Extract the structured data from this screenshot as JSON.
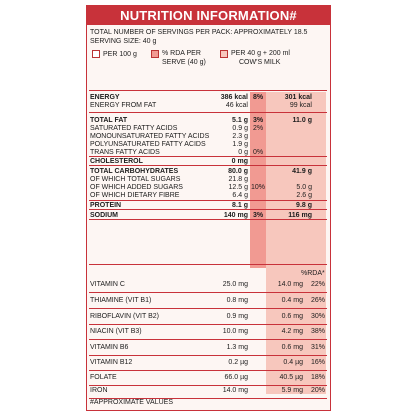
{
  "title": "NUTRITION INFORMATION#",
  "servings_text": "TOTAL NUMBER OF SERVINGS PER PACK: APPROXIMATELY 18.5",
  "serving_size_text": "SERVING SIZE: 40 g",
  "legend": {
    "per100": "PER 100 g",
    "rda_line1": "% RDA PER",
    "rda_line2": "SERVE (40 g)",
    "milk_line1": "PER 40 g + 200 ml",
    "milk_line2": "COW'S MILK"
  },
  "colors": {
    "accent": "#c8323a",
    "rda_fill": "#f19a92",
    "milk_fill": "#f7c7bd"
  },
  "rows_top": [
    {
      "label": "ENERGY",
      "bold": true,
      "v100": "386 kcal",
      "rda": "8%",
      "milk": "301 kcal",
      "mrda": ""
    },
    {
      "label": "ENERGY FROM FAT",
      "bold": false,
      "v100": "46 kcal",
      "rda": "",
      "milk": "99 kcal",
      "mrda": ""
    },
    {
      "label": "TOTAL FAT",
      "bold": true,
      "v100": "5.1 g",
      "rda": "3%",
      "milk": "11.0 g",
      "mrda": ""
    },
    {
      "label": "SATURATED FATTY ACIDS",
      "bold": false,
      "v100": "0.9 g",
      "rda": "2%",
      "milk": "",
      "mrda": ""
    },
    {
      "label": "MONOUNSATURATED FATTY ACIDS",
      "bold": false,
      "v100": "2.3 g",
      "rda": "",
      "milk": "",
      "mrda": ""
    },
    {
      "label": "POLYUNSATURATED FATTY ACIDS",
      "bold": false,
      "v100": "1.9 g",
      "rda": "",
      "milk": "",
      "mrda": ""
    },
    {
      "label": "TRANS FATTY ACIDS",
      "bold": false,
      "v100": "0 g",
      "rda": "0%",
      "milk": "",
      "mrda": ""
    },
    {
      "label": "CHOLESTEROL",
      "bold": true,
      "v100": "0 mg",
      "rda": "",
      "milk": "",
      "mrda": ""
    },
    {
      "label": "TOTAL CARBOHYDRATES",
      "bold": true,
      "v100": "80.0 g",
      "rda": "",
      "milk": "41.9 g",
      "mrda": ""
    },
    {
      "label": "OF WHICH TOTAL SUGARS",
      "bold": false,
      "v100": "21.8 g",
      "rda": "",
      "milk": "",
      "mrda": ""
    },
    {
      "label": "OF WHICH ADDED SUGARS",
      "bold": false,
      "v100": "12.5 g",
      "rda": "10%",
      "milk": "5.0 g",
      "mrda": ""
    },
    {
      "label": "OF WHICH DIETARY FIBRE",
      "bold": false,
      "v100": "6.4 g",
      "rda": "",
      "milk": "2.6 g",
      "mrda": ""
    },
    {
      "label": "PROTEIN",
      "bold": true,
      "v100": "8.1 g",
      "rda": "",
      "milk": "9.8 g",
      "mrda": ""
    },
    {
      "label": "SODIUM",
      "bold": true,
      "v100": "140 mg",
      "rda": "3%",
      "milk": "116 mg",
      "mrda": ""
    }
  ],
  "vitamin_header": "%RDA*",
  "rows_vit": [
    {
      "label": "VITAMIN C",
      "v100": "25.0 mg",
      "milk": "14.0 mg",
      "mrda": "22%"
    },
    {
      "label": "THIAMINE (VIT B1)",
      "v100": "0.8 mg",
      "milk": "0.4 mg",
      "mrda": "26%"
    },
    {
      "label": "RIBOFLAVIN (VIT B2)",
      "v100": "0.9 mg",
      "milk": "0.6 mg",
      "mrda": "30%"
    },
    {
      "label": "NIACIN (VIT B3)",
      "v100": "10.0 mg",
      "milk": "4.2 mg",
      "mrda": "38%"
    },
    {
      "label": "VITAMIN B6",
      "v100": "1.3 mg",
      "milk": "0.6 mg",
      "mrda": "31%"
    },
    {
      "label": "VITAMIN B12",
      "v100": "0.2 µg",
      "milk": "0.4 µg",
      "mrda": "16%"
    },
    {
      "label": "FOLATE",
      "v100": "66.0 µg",
      "milk": "40.5 µg",
      "mrda": "18%"
    },
    {
      "label": "IRON",
      "v100": "14.0 mg",
      "milk": "5.9 mg",
      "mrda": "20%"
    }
  ],
  "footnote": "#APPROXIMATE VALUES"
}
